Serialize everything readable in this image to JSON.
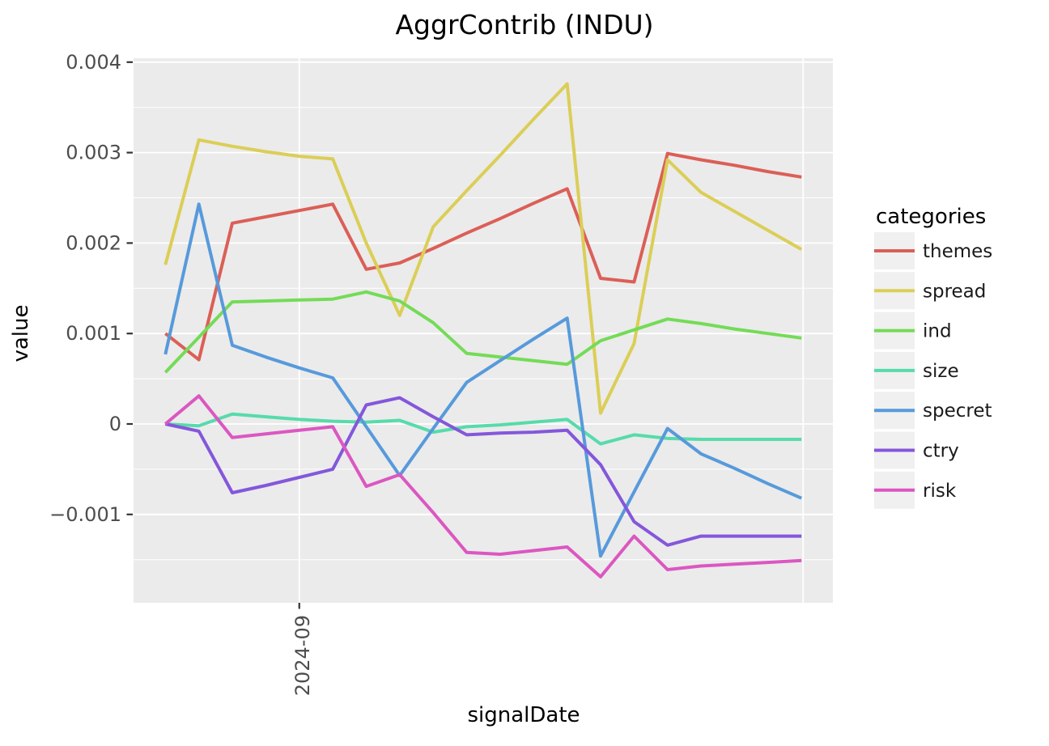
{
  "title": "AggrContrib (INDU)",
  "axes": {
    "x_label": "signalDate",
    "y_label": "value"
  },
  "legend": {
    "title": "categories",
    "position": "right",
    "entries": [
      "themes",
      "spread",
      "ind",
      "size",
      "specret",
      "ctry",
      "risk"
    ]
  },
  "theme": {
    "panel_bg": "#EBEBEB",
    "grid_color": "#FFFFFF",
    "tick_label_color": "#4D4D4D",
    "tick_mark_color": "#333333",
    "text_color": "#000000",
    "legend_key_bg": "#F0F0F0",
    "figure_bg": "#FFFFFF"
  },
  "chart_data": {
    "type": "line",
    "title": "AggrContrib (INDU)",
    "xlabel": "signalDate",
    "ylabel": "value",
    "legend_title": "categories",
    "legend_position": "right",
    "grid": true,
    "x": [
      0,
      1,
      2,
      3,
      4,
      5,
      6,
      7,
      8,
      9,
      10,
      11,
      12,
      13,
      14,
      15,
      16,
      17,
      18,
      19
    ],
    "x_ticks": [
      {
        "index": 4,
        "label": "2024-09"
      }
    ],
    "x_extra_month_gridline_index": 19.05,
    "ylim": [
      -0.00198,
      0.00404
    ],
    "y_ticks": [
      {
        "value": 0.004,
        "label": "0.004"
      },
      {
        "value": 0.003,
        "label": "0.003"
      },
      {
        "value": 0.002,
        "label": "0.002"
      },
      {
        "value": 0.001,
        "label": "0.001"
      },
      {
        "value": 0.0,
        "label": "0"
      },
      {
        "value": -0.001,
        "label": "−0.001"
      }
    ],
    "y_minor_ticks": [
      0.0035,
      0.0025,
      0.0015,
      0.0005,
      -0.0005,
      -0.0015
    ],
    "series": [
      {
        "name": "themes",
        "color": "#DB5F57",
        "values": [
          0.001,
          0.00071,
          0.00222,
          0.00229,
          0.00236,
          0.00243,
          0.00171,
          0.00178,
          0.00194,
          0.00211,
          0.00227,
          0.00244,
          0.0026,
          0.00161,
          0.00157,
          0.00299,
          0.00292,
          0.00286,
          0.00279,
          0.00273
        ]
      },
      {
        "name": "spread",
        "color": "#DBCE57",
        "values": [
          0.00176,
          0.00314,
          0.00307,
          0.00301,
          0.00296,
          0.00293,
          0.002,
          0.0012,
          0.00218,
          0.00258,
          0.00297,
          0.00337,
          0.00376,
          0.00012,
          0.00089,
          0.00292,
          0.00256,
          0.00235,
          0.00214,
          0.00193
        ]
      },
      {
        "name": "ind",
        "color": "#74DB57",
        "values": [
          0.00057,
          0.00096,
          0.00135,
          0.00136,
          0.00137,
          0.00138,
          0.00146,
          0.00136,
          0.00112,
          0.00078,
          0.00074,
          0.0007,
          0.00066,
          0.00092,
          0.00104,
          0.00116,
          0.00111,
          0.00105,
          0.001,
          0.00095
        ]
      },
      {
        "name": "size",
        "color": "#57DBAB",
        "values": [
          0.0,
          -2e-05,
          0.00011,
          8e-05,
          5e-05,
          3e-05,
          2e-05,
          4e-05,
          -9e-05,
          -3e-05,
          -1e-05,
          2e-05,
          5e-05,
          -0.00022,
          -0.00012,
          -0.00016,
          -0.00017,
          -0.00017,
          -0.00017,
          -0.00017
        ]
      },
      {
        "name": "specret",
        "color": "#579ADB",
        "values": [
          0.00077,
          0.00243,
          0.00087,
          0.00074,
          0.00062,
          0.00051,
          -3e-05,
          -0.00057,
          -5e-05,
          0.00046,
          0.0007,
          0.00094,
          0.00117,
          -0.00146,
          -0.00075,
          -5e-05,
          -0.00033,
          -0.00049,
          -0.00066,
          -0.00082
        ]
      },
      {
        "name": "ctry",
        "color": "#8457DB",
        "values": [
          0.0,
          -8e-05,
          -0.00076,
          -0.00068,
          -0.00059,
          -0.0005,
          0.00021,
          0.00029,
          8e-05,
          -0.00012,
          -0.0001,
          -9e-05,
          -7e-05,
          -0.00045,
          -0.00108,
          -0.00134,
          -0.00124,
          -0.00124,
          -0.00124,
          -0.00124
        ]
      },
      {
        "name": "risk",
        "color": "#DB57C1",
        "values": [
          0.0,
          0.00031,
          -0.00015,
          -0.00011,
          -7e-05,
          -3e-05,
          -0.00069,
          -0.00056,
          -0.00098,
          -0.00142,
          -0.00144,
          -0.0014,
          -0.00136,
          -0.00169,
          -0.00124,
          -0.00161,
          -0.00157,
          -0.00155,
          -0.00153,
          -0.00151
        ]
      }
    ]
  }
}
